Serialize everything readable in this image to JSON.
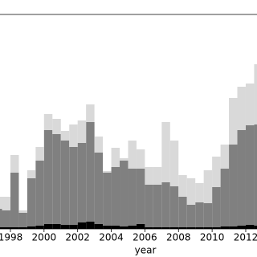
{
  "chart_data": {
    "type": "stacked_histogram",
    "x_label": "year",
    "bins": [
      1997.0,
      1997.5,
      1998.0,
      1998.5,
      1999.0,
      1999.5,
      2000.0,
      2000.5,
      2001.0,
      2001.5,
      2002.0,
      2002.5,
      2003.0,
      2003.5,
      2004.0,
      2004.5,
      2005.0,
      2005.5,
      2006.0,
      2006.5,
      2007.0,
      2007.5,
      2008.0,
      2008.5,
      2009.0,
      2009.5,
      2010.0,
      2010.5,
      2011.0,
      2011.5,
      2012.0,
      2012.5,
      2013.0
    ],
    "series": [
      {
        "color": "#000000",
        "values": [
          2,
          2,
          2,
          2,
          3,
          4,
          6,
          6,
          5,
          5,
          8,
          9,
          6,
          4,
          4,
          3,
          4,
          6,
          2,
          2,
          2,
          2,
          2,
          2,
          2,
          2,
          2,
          3,
          3,
          4,
          5,
          4
        ]
      },
      {
        "color": "#808080",
        "values": [
          23,
          21,
          68,
          18,
          60,
          81,
          117,
          112,
          105,
          97,
          99,
          124,
          89,
          66,
          73,
          82,
          71,
          69,
          53,
          53,
          56,
          51,
          38,
          28,
          31,
          30,
          50,
          72,
          102,
          119,
          124,
          126
        ]
      },
      {
        "color": "#d9d9d9",
        "values": [
          15,
          17,
          22,
          3,
          10,
          17,
          20,
          19,
          12,
          28,
          28,
          22,
          20,
          2,
          24,
          3,
          35,
          24,
          22,
          22,
          75,
          57,
          27,
          33,
          24,
          41,
          38,
          30,
          58,
          54,
          52,
          75
        ]
      }
    ],
    "xlim": [
      1997.38,
      2012.67
    ],
    "ylim": [
      0,
      267
    ],
    "xticks": [
      1998,
      2000,
      2002,
      2004,
      2006,
      2008,
      2010,
      2012
    ]
  }
}
